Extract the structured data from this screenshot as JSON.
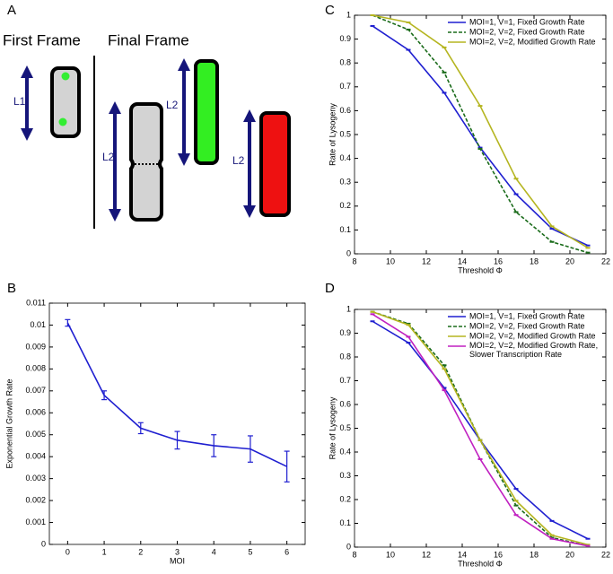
{
  "diagram": {
    "panel": "A",
    "first_frame": "First Frame",
    "final_frame": "Final Frame",
    "lengths": [
      "L1",
      "L2",
      "L2",
      "L2"
    ]
  },
  "chart_data": [
    {
      "type": "line",
      "panel": "B",
      "xlabel": "MOI",
      "ylabel": "Exponential Growth Rate",
      "x": [
        0,
        1,
        2,
        3,
        4,
        5,
        6
      ],
      "xlim": [
        -0.5,
        6.5
      ],
      "xticks": [
        0,
        1,
        2,
        3,
        4,
        5,
        6
      ],
      "ylim": [
        0,
        0.011
      ],
      "yticks": [
        0,
        0.001,
        0.002,
        0.003,
        0.004,
        0.005,
        0.006,
        0.007,
        0.008,
        0.009,
        0.01,
        0.011
      ],
      "series": [
        {
          "color": "#1f1fd0",
          "values": [
            0.0101,
            0.0068,
            0.0053,
            0.00475,
            0.0045,
            0.00435,
            0.00355
          ],
          "errors": [
            0.00015,
            0.0002,
            0.00025,
            0.0004,
            0.0005,
            0.0006,
            0.0007
          ]
        }
      ]
    },
    {
      "type": "line",
      "panel": "C",
      "xlabel": "Threshold Φ",
      "ylabel": "Rate of Lysogeny",
      "x": [
        9,
        11,
        13,
        15,
        17,
        19,
        21
      ],
      "xlim": [
        8,
        22
      ],
      "xticks": [
        8,
        10,
        12,
        14,
        16,
        18,
        20,
        22
      ],
      "ylim": [
        0,
        1
      ],
      "yticks": [
        0,
        0.1,
        0.2,
        0.3,
        0.4,
        0.5,
        0.6,
        0.7,
        0.8,
        0.9,
        1
      ],
      "legend": "upper right",
      "series": [
        {
          "name": "MOI=1, V=1, Fixed Growth Rate",
          "color": "#1f1fd0",
          "dash": false,
          "values": [
            0.955,
            0.855,
            0.675,
            0.445,
            0.25,
            0.105,
            0.035
          ]
        },
        {
          "name": "MOI=2, V=2, Fixed Growth Rate",
          "color": "#1a6b1a",
          "dash": true,
          "values": [
            1.0,
            0.94,
            0.76,
            0.44,
            0.175,
            0.05,
            0.005
          ]
        },
        {
          "name": "MOI=2, V=2, Modified Growth Rate",
          "color": "#b5b520",
          "dash": false,
          "values": [
            1.0,
            0.97,
            0.865,
            0.62,
            0.315,
            0.115,
            0.025
          ]
        }
      ]
    },
    {
      "type": "line",
      "panel": "D",
      "xlabel": "Threshold Φ",
      "ylabel": "Rate of Lysogeny",
      "x": [
        9,
        11,
        13,
        15,
        17,
        19,
        21
      ],
      "xlim": [
        8,
        22
      ],
      "xticks": [
        8,
        10,
        12,
        14,
        16,
        18,
        20,
        22
      ],
      "ylim": [
        0,
        1
      ],
      "yticks": [
        0,
        0.1,
        0.2,
        0.3,
        0.4,
        0.5,
        0.6,
        0.7,
        0.8,
        0.9,
        1
      ],
      "legend": "upper right",
      "series": [
        {
          "name": "MOI=1, V=1, Fixed Growth Rate",
          "color": "#1f1fd0",
          "dash": false,
          "values": [
            0.95,
            0.86,
            0.67,
            0.45,
            0.245,
            0.11,
            0.035
          ]
        },
        {
          "name": "MOI=2, V=2, Fixed Growth Rate",
          "color": "#1a6b1a",
          "dash": true,
          "values": [
            0.99,
            0.94,
            0.765,
            0.45,
            0.175,
            0.04,
            0.005
          ]
        },
        {
          "name": "MOI=2, V=2, Modified Growth Rate",
          "color": "#b5b520",
          "dash": false,
          "values": [
            0.99,
            0.935,
            0.75,
            0.45,
            0.195,
            0.05,
            0.01
          ]
        },
        {
          "name": "MOI=2, V=2, Modified Growth Rate, Slower Transcription Rate",
          "color": "#c020c0",
          "dash": false,
          "values": [
            0.98,
            0.885,
            0.66,
            0.37,
            0.135,
            0.035,
            0.005
          ]
        }
      ]
    }
  ]
}
